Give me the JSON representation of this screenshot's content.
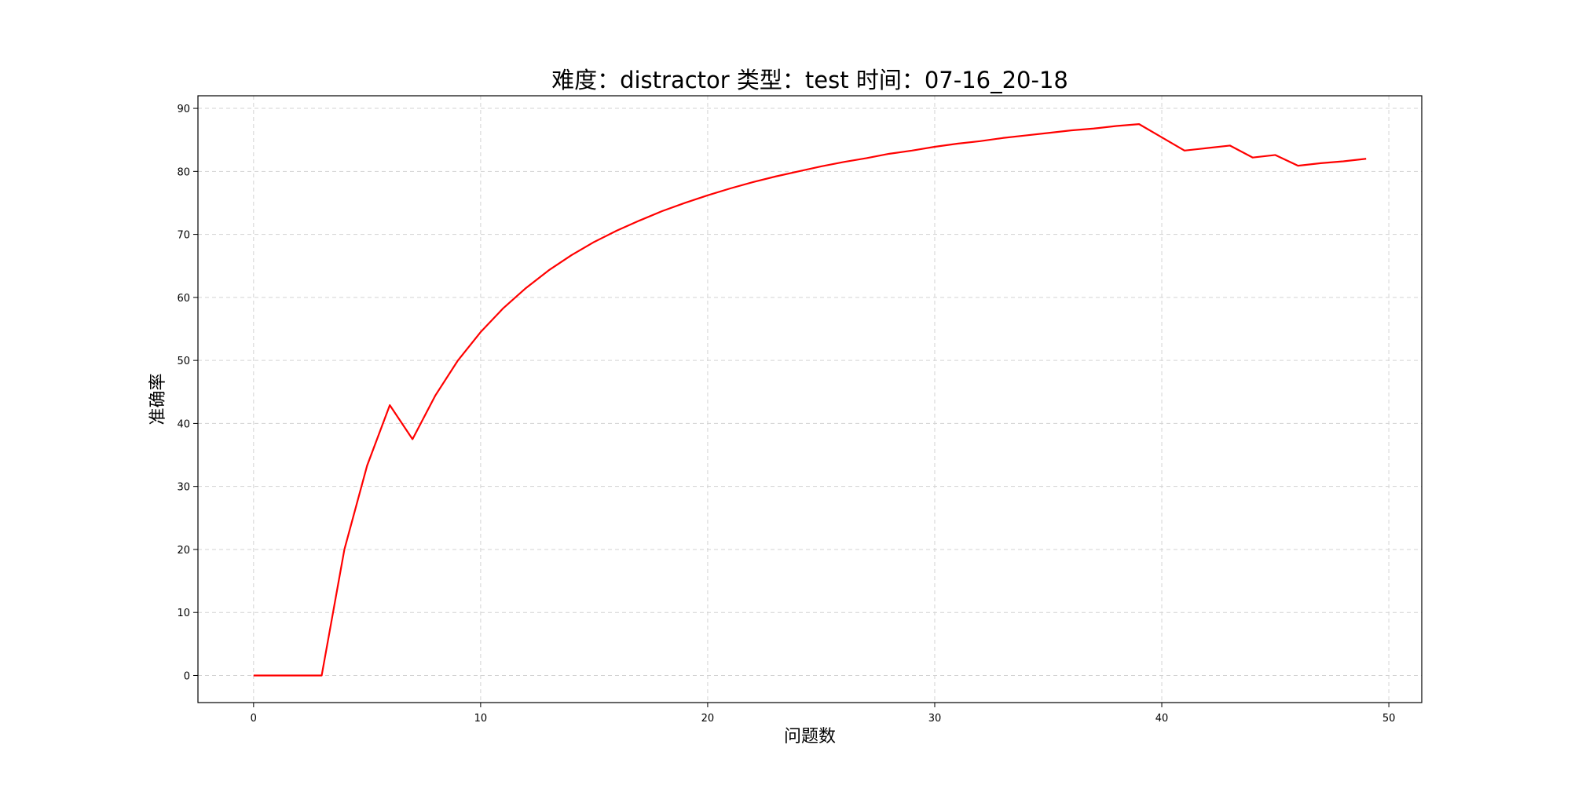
{
  "chart_data": {
    "type": "line",
    "title": "难度：distractor 类型：test 时间：07-16_20-18",
    "xlabel": "问题数",
    "ylabel": "准确率",
    "xlim": [
      -2.45,
      51.45
    ],
    "ylim": [
      -4.3,
      92
    ],
    "xticks": [
      0,
      10,
      20,
      30,
      40,
      50
    ],
    "yticks": [
      0,
      10,
      20,
      30,
      40,
      50,
      60,
      70,
      80,
      90
    ],
    "grid": true,
    "legend": "none",
    "series": [
      {
        "color": "#ff0000",
        "x": [
          0,
          1,
          2,
          3,
          4,
          5,
          6,
          7,
          8,
          9,
          10,
          11,
          12,
          13,
          14,
          15,
          16,
          17,
          18,
          19,
          20,
          21,
          22,
          23,
          24,
          25,
          26,
          27,
          28,
          29,
          30,
          31,
          32,
          33,
          34,
          35,
          36,
          37,
          38,
          39,
          40,
          41,
          42,
          43,
          44,
          45,
          46,
          47,
          48,
          49
        ],
        "y": [
          0,
          0,
          0,
          0,
          20,
          33.3,
          42.9,
          37.5,
          44.4,
          50,
          54.5,
          58.3,
          61.5,
          64.3,
          66.7,
          68.8,
          70.6,
          72.2,
          73.7,
          75,
          76.2,
          77.3,
          78.3,
          79.2,
          80,
          80.8,
          81.5,
          82.1,
          82.8,
          83.3,
          83.9,
          84.4,
          84.8,
          85.3,
          85.7,
          86.1,
          86.5,
          86.8,
          87.2,
          87.5,
          85.4,
          83.3,
          83.7,
          84.1,
          82.2,
          82.6,
          80.9,
          81.3,
          81.6,
          82
        ]
      }
    ]
  }
}
